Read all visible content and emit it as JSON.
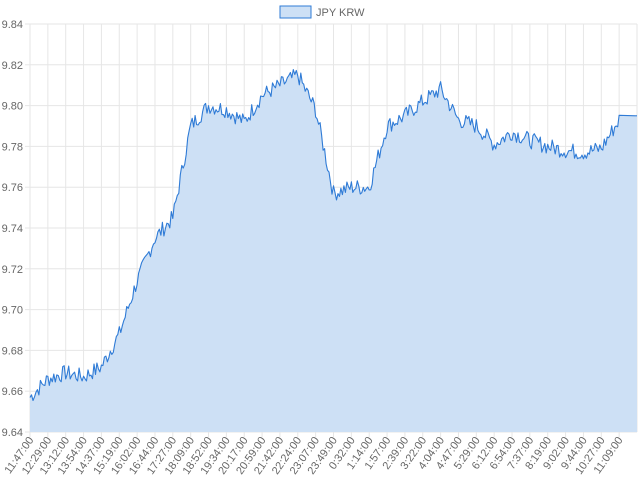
{
  "chart_data": {
    "type": "area",
    "title": "",
    "xlabel": "",
    "ylabel": "",
    "ylim": [
      9.64,
      9.84
    ],
    "yticks": [
      9.64,
      9.66,
      9.68,
      9.7,
      9.72,
      9.74,
      9.76,
      9.78,
      9.8,
      9.82,
      9.84
    ],
    "ytick_labels": [
      "9.64",
      "9.66",
      "9.68",
      "9.70",
      "9.72",
      "9.74",
      "9.76",
      "9.78",
      "9.80",
      "9.82",
      "9.84"
    ],
    "grid": true,
    "legend": "top-center",
    "colors": {
      "line": "#2f7bd6",
      "fill": "#cde0f5",
      "grid": "#e6e6e6",
      "axis_text": "#666666"
    },
    "x": [
      "11:47:00",
      "12:29:00",
      "13:12:00",
      "13:54:00",
      "14:37:00",
      "15:19:00",
      "16:02:00",
      "16:44:00",
      "17:27:00",
      "18:09:00",
      "18:52:00",
      "19:34:00",
      "20:17:00",
      "20:59:00",
      "21:42:00",
      "22:24:00",
      "23:07:00",
      "23:49:00",
      "0:32:00",
      "1:14:00",
      "1:57:00",
      "2:39:00",
      "3:22:00",
      "4:04:00",
      "4:47:00",
      "5:29:00",
      "6:12:00",
      "6:54:00",
      "7:37:00",
      "8:19:00",
      "9:02:00",
      "9:44:00",
      "10:27:00",
      "11:09:00"
    ],
    "series": [
      {
        "name": "JPY KRW",
        "values": [
          9.657,
          9.666,
          9.669,
          9.667,
          9.672,
          9.688,
          9.714,
          9.735,
          9.745,
          9.79,
          9.8,
          9.798,
          9.792,
          9.805,
          9.81,
          9.815,
          9.798,
          9.757,
          9.76,
          9.76,
          9.79,
          9.795,
          9.802,
          9.808,
          9.793,
          9.79,
          9.781,
          9.787,
          9.783,
          9.78,
          9.778,
          9.777,
          9.779,
          9.793
        ]
      }
    ]
  }
}
